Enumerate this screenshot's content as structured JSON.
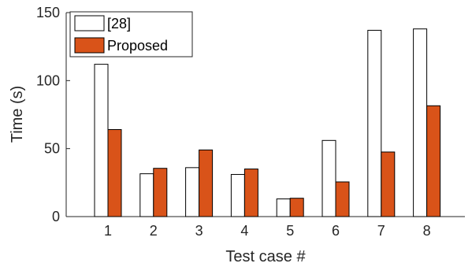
{
  "chart_data": {
    "type": "bar",
    "categories": [
      "1",
      "2",
      "3",
      "4",
      "5",
      "6",
      "7",
      "8"
    ],
    "series": [
      {
        "name": "[28]",
        "values": [
          112,
          31.5,
          36,
          31,
          13,
          56,
          137,
          138
        ],
        "color": "#ffffff"
      },
      {
        "name": "Proposed",
        "values": [
          64,
          35.5,
          49,
          35,
          13.5,
          25.5,
          47.5,
          81.5
        ],
        "color": "#d95319"
      }
    ],
    "title": "",
    "xlabel": "Test case #",
    "ylabel": "Time (s)",
    "ylim": [
      0,
      150
    ],
    "yticks": [
      "0",
      "50",
      "100",
      "150"
    ],
    "grid": false,
    "legend_position": "top-left",
    "colors": {
      "axis": "#262626",
      "bar_edge": "#000000"
    }
  }
}
